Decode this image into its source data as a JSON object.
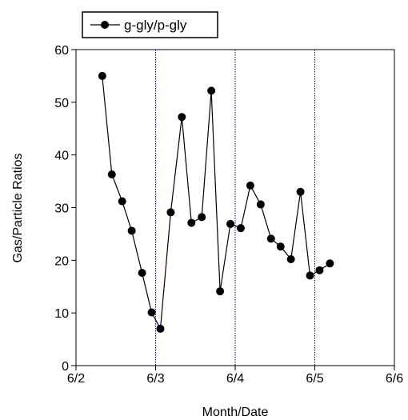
{
  "chart_data": {
    "type": "line",
    "title": "",
    "xlabel": "Month/Date",
    "ylabel": "Gas/Particle Ratios",
    "x_ticks": [
      "6/2",
      "6/3",
      "6/4",
      "6/5",
      "6/6"
    ],
    "y_ticks": [
      "0",
      "10",
      "20",
      "30",
      "40",
      "50",
      "60"
    ],
    "xlim": [
      0,
      4
    ],
    "ylim": [
      0,
      60
    ],
    "vertical_gridlines_at": [
      1,
      2,
      3
    ],
    "gridline_color": "#0000cc",
    "legend_position": "top-left",
    "series": [
      {
        "name": "g-gly/p-gly",
        "color": "#000000",
        "marker": "circle",
        "x": [
          0.33,
          0.45,
          0.58,
          0.7,
          0.83,
          0.95,
          1.06,
          1.19,
          1.33,
          1.45,
          1.58,
          1.7,
          1.81,
          1.94,
          2.07,
          2.19,
          2.32,
          2.45,
          2.57,
          2.7,
          2.82,
          2.94,
          3.06,
          3.19
        ],
        "y": [
          55.0,
          36.3,
          31.2,
          25.6,
          17.6,
          10.1,
          7.0,
          29.1,
          47.2,
          27.1,
          28.2,
          52.2,
          14.1,
          26.9,
          26.1,
          34.2,
          30.6,
          24.1,
          22.6,
          20.2,
          33.0,
          17.1,
          18.1,
          19.4
        ]
      }
    ]
  }
}
